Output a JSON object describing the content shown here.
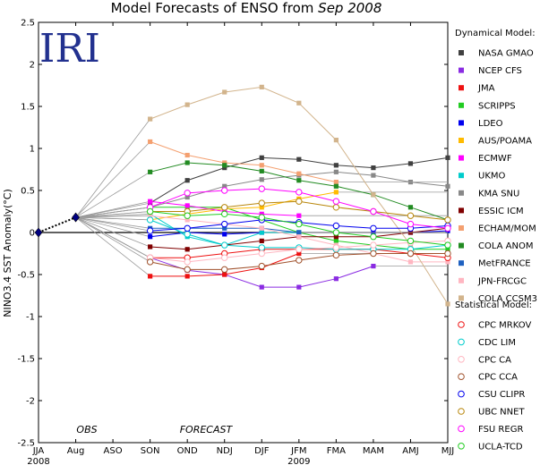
{
  "chart_data": {
    "type": "line",
    "title_prefix": "Model Forecasts of ENSO from ",
    "title_date": "Sep 2008",
    "logo": "IRI",
    "ylabel": "NINO3.4 SST Anomaly(°C)",
    "ylim": [
      -2.5,
      2.5
    ],
    "yticks": [
      "2.5",
      "2",
      "1.5",
      "1",
      "0.5",
      "0",
      "-0.5",
      "-1",
      "-1.5",
      "-2",
      "-2.5"
    ],
    "ytick_values": [
      2.5,
      2,
      1.5,
      1,
      0.5,
      0,
      -0.5,
      -1,
      -1.5,
      -2,
      -2.5
    ],
    "categories": [
      "JJA",
      "Aug",
      "ASO",
      "SON",
      "OND",
      "NDJ",
      "DJF",
      "JFM",
      "FMA",
      "MAM",
      "AMJ",
      "MJJ"
    ],
    "year_labels": [
      {
        "text": "2008",
        "at": 0
      },
      {
        "text": "2009",
        "at": 7
      }
    ],
    "annotations": [
      {
        "text": "OBS",
        "at": 1.3
      },
      {
        "text": "FORECAST",
        "at": 4.5
      }
    ],
    "observed": {
      "x": [
        0,
        1
      ],
      "values": [
        0.0,
        0.18
      ],
      "color": "#000080"
    },
    "legend_dynamical_title": "Dynamical Model:",
    "legend_statistical_title": "Statistical Model:",
    "dynamical": [
      {
        "name": "NASA GMAO",
        "color": "#404040",
        "values": [
          0.35,
          0.62,
          0.77,
          0.89,
          0.87,
          0.8,
          0.77,
          0.82,
          0.89
        ]
      },
      {
        "name": "NCEP CFS",
        "color": "#8a2be2",
        "values": [
          -0.3,
          -0.45,
          -0.5,
          -0.65,
          -0.65,
          -0.55,
          -0.4,
          null,
          null
        ]
      },
      {
        "name": "JMA",
        "color": "#ee1111",
        "values": [
          -0.52,
          -0.52,
          -0.5,
          -0.42,
          -0.25,
          null,
          null,
          null,
          null
        ]
      },
      {
        "name": "SCRIPPS",
        "color": "#22cc22",
        "values": [
          0.3,
          0.3,
          0.3,
          0.15,
          0.0,
          -0.1,
          -0.15,
          -0.2,
          -0.2
        ]
      },
      {
        "name": "LDEO",
        "color": "#0000ee",
        "values": [
          -0.05,
          0.0,
          -0.02,
          0.0,
          0.0,
          0.0,
          0.0,
          0.0,
          0.02
        ]
      },
      {
        "name": "AUS/POAMA",
        "color": "#ffbb00",
        "values": [
          0.15,
          0.22,
          0.28,
          0.3,
          0.4,
          0.48,
          null,
          null,
          null
        ]
      },
      {
        "name": "ECMWF",
        "color": "#ff00ff",
        "values": [
          0.37,
          0.32,
          0.25,
          0.22,
          0.2,
          null,
          null,
          null,
          null
        ]
      },
      {
        "name": "UKMO",
        "color": "#00cccc",
        "values": [
          0.22,
          -0.05,
          -0.15,
          0.0,
          0.0,
          null,
          null,
          null,
          null
        ]
      },
      {
        "name": "KMA SNU",
        "color": "#888888",
        "values": [
          0.3,
          0.42,
          0.55,
          0.63,
          0.68,
          0.72,
          0.68,
          0.6,
          0.55
        ]
      },
      {
        "name": "ESSIC ICM",
        "color": "#800000",
        "values": [
          -0.17,
          -0.2,
          -0.15,
          -0.1,
          -0.05,
          -0.05,
          -0.05,
          0.0,
          0.05
        ]
      },
      {
        "name": "ECHAM/MOM",
        "color": "#f4a070",
        "values": [
          1.08,
          0.92,
          0.83,
          0.8,
          0.7,
          0.6,
          null,
          null,
          null
        ]
      },
      {
        "name": "COLA ANOM",
        "color": "#228b22",
        "values": [
          0.72,
          0.83,
          0.8,
          0.73,
          0.62,
          0.55,
          0.45,
          0.3,
          0.15
        ]
      },
      {
        "name": "MetFRANCE",
        "color": "#1e60c0",
        "values": [
          0.05,
          0.05,
          0.05,
          0.05,
          0.0,
          null,
          null,
          null,
          null
        ]
      },
      {
        "name": "JPN-FRCGC",
        "color": "#ffb6c1",
        "values": [
          0.2,
          0.15,
          0.1,
          0.05,
          -0.05,
          -0.15,
          -0.25,
          -0.35,
          -0.35
        ]
      },
      {
        "name": "COLA CCSM3",
        "color": "#d2b48c",
        "values": [
          1.35,
          1.52,
          1.67,
          1.73,
          1.54,
          1.1,
          0.45,
          -0.15,
          -0.85
        ]
      }
    ],
    "statistical": [
      {
        "name": "CPC MRKOV",
        "color": "#ee1111",
        "values": [
          -0.3,
          -0.3,
          -0.25,
          -0.2,
          -0.2,
          -0.2,
          -0.2,
          -0.25,
          -0.3
        ]
      },
      {
        "name": "CDC LIM",
        "color": "#00cccc",
        "values": [
          0.15,
          -0.02,
          -0.15,
          -0.18,
          -0.18,
          -0.2,
          -0.2,
          -0.2,
          -0.15
        ]
      },
      {
        "name": "CPC CA",
        "color": "#ffb6c1",
        "values": [
          -0.3,
          -0.35,
          -0.3,
          -0.25,
          -0.2,
          -0.18,
          -0.15,
          -0.12,
          -0.1
        ]
      },
      {
        "name": "CPC CCA",
        "color": "#a0522d",
        "values": [
          -0.35,
          -0.44,
          -0.44,
          -0.4,
          -0.33,
          -0.27,
          -0.25,
          -0.25,
          -0.25
        ]
      },
      {
        "name": "CSU CLIPR",
        "color": "#0000ee",
        "values": [
          0.02,
          0.05,
          0.1,
          0.15,
          0.12,
          0.08,
          0.05,
          0.05,
          0.08
        ]
      },
      {
        "name": "UBC NNET",
        "color": "#b8860b",
        "values": [
          0.25,
          0.25,
          0.3,
          0.35,
          0.37,
          0.3,
          0.25,
          0.2,
          0.15
        ]
      },
      {
        "name": "FSU REGR",
        "color": "#ff00ff",
        "values": [
          0.3,
          0.47,
          0.5,
          0.52,
          0.48,
          0.37,
          0.25,
          0.1,
          0.05
        ]
      },
      {
        "name": "UCLA-TCD",
        "color": "#22cc22",
        "values": [
          0.25,
          0.2,
          0.22,
          0.18,
          0.1,
          0.0,
          -0.05,
          -0.1,
          -0.15
        ]
      }
    ]
  }
}
